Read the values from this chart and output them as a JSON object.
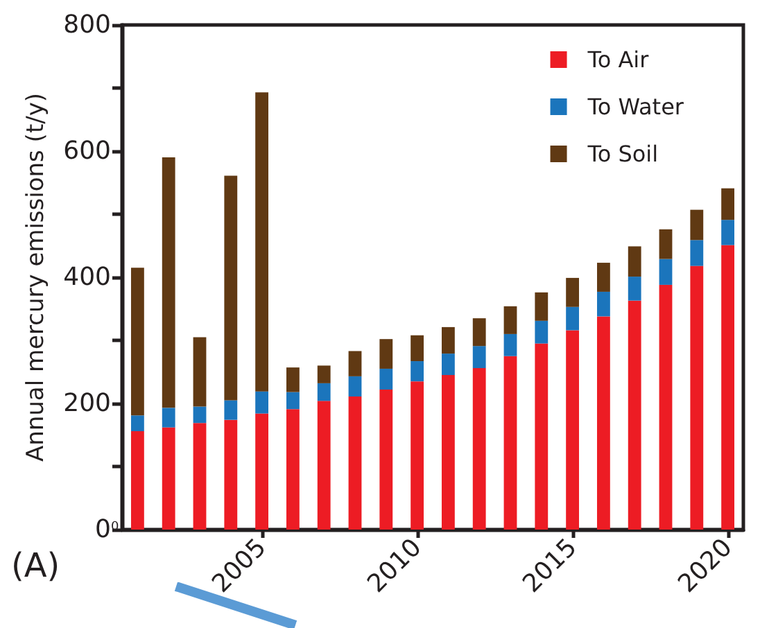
{
  "chart_data": {
    "type": "bar",
    "stacked": true,
    "ylabel": "Annual mercury emissions (t/y)",
    "categories": [
      null,
      null,
      null,
      null,
      "2005",
      null,
      null,
      null,
      null,
      "2010",
      null,
      null,
      null,
      null,
      "2015",
      null,
      null,
      null,
      null,
      "2020"
    ],
    "series": [
      {
        "name": "To Air",
        "color": "#ed1c24",
        "values": [
          156,
          162,
          169,
          174,
          184,
          191,
          204,
          211,
          222,
          235,
          245,
          256,
          275,
          295,
          316,
          338,
          363,
          388,
          418,
          451
        ]
      },
      {
        "name": "To Water",
        "color": "#1b75bc",
        "values": [
          25,
          31,
          26,
          31,
          35,
          27,
          28,
          32,
          33,
          32,
          34,
          35,
          35,
          36,
          37,
          39,
          38,
          41,
          41,
          40
        ]
      },
      {
        "name": "To Soil",
        "color": "#603913",
        "values": [
          234,
          397,
          110,
          356,
          474,
          39,
          28,
          40,
          47,
          41,
          42,
          44,
          44,
          45,
          46,
          46,
          48,
          47,
          48,
          50
        ]
      }
    ],
    "ylim": [
      0,
      800
    ],
    "yticks": [
      0,
      {
        "value": 100,
        "label": null
      },
      200,
      {
        "value": 300,
        "label": null
      },
      400,
      {
        "value": 500,
        "label": null
      },
      600,
      {
        "value": 700,
        "label": null
      },
      800
    ],
    "annotations": [
      "(A)",
      "0"
    ],
    "grid": false,
    "legend": "top right"
  }
}
